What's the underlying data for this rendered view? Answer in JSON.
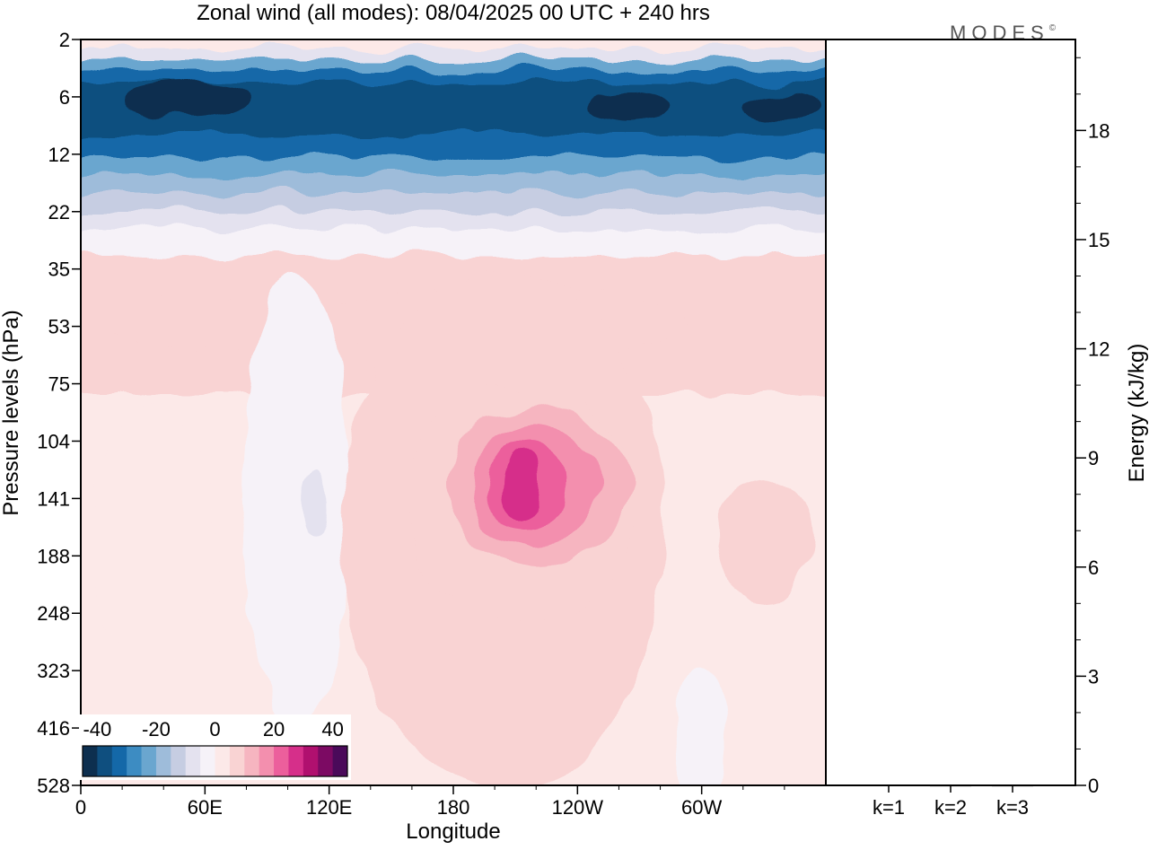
{
  "title": "Zonal wind (all modes):  08/04/2025  00 UTC  + 240 hrs",
  "logo": "MODES",
  "logo_mark": "©",
  "chart_data": [
    {
      "type": "heatmap",
      "title": "Zonal wind (all modes):  08/04/2025  00 UTC  + 240 hrs",
      "xlabel": "Longitude",
      "ylabel": "Pressure levels (hPa)",
      "x_ticks": [
        "0",
        "60E",
        "120E",
        "180",
        "120W",
        "60W"
      ],
      "x_tick_degrees": [
        0,
        60,
        120,
        180,
        240,
        300
      ],
      "x_range_degrees": [
        0,
        360
      ],
      "y_ticks": [
        "2",
        "6",
        "12",
        "22",
        "35",
        "53",
        "75",
        "104",
        "141",
        "188",
        "248",
        "323",
        "416",
        "528"
      ],
      "y_scale": "pressure levels (top 2 hPa, bottom 528 hPa)",
      "colorbar": {
        "ticks": [
          "-40",
          "-20",
          "0",
          "20",
          "40"
        ],
        "tick_values": [
          -40,
          -20,
          0,
          20,
          40
        ],
        "range": [
          -45,
          45
        ],
        "colors": [
          "#0d2f4f",
          "#0f4f7f",
          "#1468a8",
          "#3d8cc2",
          "#6aa6cf",
          "#9ebcda",
          "#c6cde2",
          "#e4e2ef",
          "#f6f2f8",
          "#fce9e8",
          "#f9d3d3",
          "#f6b5c0",
          "#f38fae",
          "#ec5f9c",
          "#d62f8a",
          "#b0106f",
          "#7c0a63",
          "#4a0a5a"
        ]
      },
      "features": [
        {
          "region": "upper stratosphere 4-12 hPa, all longitudes",
          "value": "-30 to -45 (easterly)"
        },
        {
          "region": "2 hPa",
          "value": "about 0 to +5"
        },
        {
          "region": "35-75 hPa, all longitudes",
          "value": "+5 to +10"
        },
        {
          "region": "maximum near 200E (160W), 120-150 hPa",
          "value": "about +25"
        },
        {
          "region": "lower levels 188-528 hPa",
          "value": "-5 to +5"
        }
      ]
    },
    {
      "type": "bar",
      "ylabel": "Energy (kJ/kg)",
      "categories": [
        "k=1",
        "k=2",
        "k=3"
      ],
      "values": [
        0.02,
        0.01,
        0.01
      ],
      "ylim": [
        0,
        20.5
      ],
      "y_ticks": [
        "0",
        "3",
        "6",
        "9",
        "12",
        "15",
        "18"
      ],
      "y_tick_values": [
        0,
        3,
        6,
        9,
        12,
        15,
        18
      ]
    }
  ]
}
